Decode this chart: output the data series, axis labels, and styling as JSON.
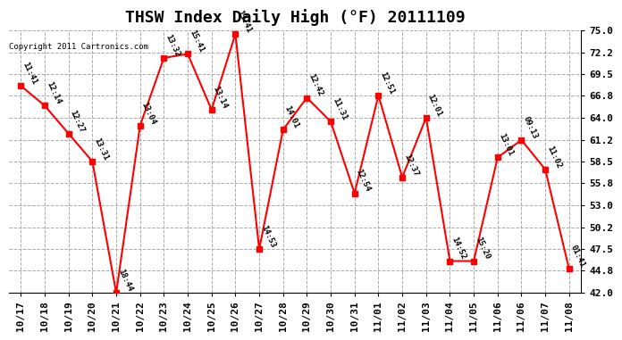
{
  "title": "THSW Index Daily High (°F) 20111109",
  "copyright": "Copyright 2011 Cartronics.com",
  "x_labels": [
    "10/17",
    "10/18",
    "10/19",
    "10/20",
    "10/21",
    "10/22",
    "10/23",
    "10/24",
    "10/25",
    "10/26",
    "10/27",
    "10/28",
    "10/29",
    "10/30",
    "10/31",
    "11/01",
    "11/02",
    "11/03",
    "11/04",
    "11/05",
    "11/06",
    "11/06",
    "11/07",
    "11/08"
  ],
  "x_indices": [
    0,
    1,
    2,
    3,
    4,
    5,
    6,
    7,
    8,
    9,
    10,
    11,
    12,
    13,
    14,
    15,
    16,
    17,
    18,
    19,
    20,
    21,
    22,
    23
  ],
  "y_values": [
    68.0,
    65.5,
    62.0,
    58.5,
    42.0,
    63.0,
    71.5,
    72.0,
    65.0,
    74.5,
    47.5,
    62.5,
    66.5,
    63.5,
    54.5,
    66.8,
    56.5,
    64.0,
    46.0,
    46.0,
    59.0,
    61.2,
    57.5,
    45.0
  ],
  "time_labels": [
    "11:41",
    "12:14",
    "12:27",
    "13:31",
    "18:44",
    "13:04",
    "13:32",
    "15:41",
    "13:14",
    "13:41",
    "14:53",
    "14:01",
    "12:42",
    "11:31",
    "12:54",
    "12:51",
    "12:37",
    "12:01",
    "14:52",
    "15:20",
    "13:01",
    "09:13",
    "11:02",
    "01:41"
  ],
  "ylim": [
    42.0,
    75.0
  ],
  "yticks": [
    42.0,
    44.8,
    47.5,
    50.2,
    53.0,
    55.8,
    58.5,
    61.2,
    64.0,
    66.8,
    69.5,
    72.2,
    75.0
  ],
  "line_color": "red",
  "marker_color": "red",
  "marker_size": 4,
  "grid_color": "#aaaaaa",
  "bg_color": "white",
  "title_fontsize": 13,
  "label_fontsize": 7.5,
  "tick_fontsize": 8
}
